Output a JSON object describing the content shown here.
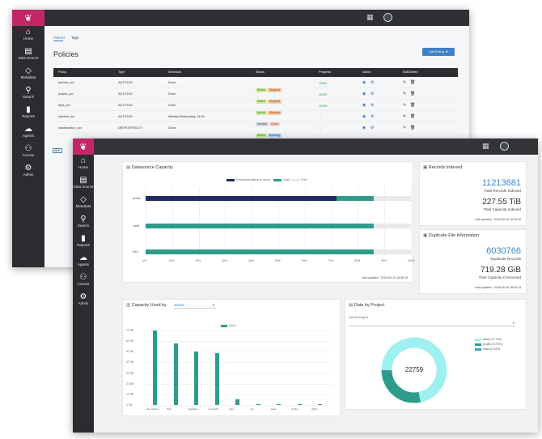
{
  "colors": {
    "brand": "#c42768",
    "topbar": "#2f3033",
    "sidebar": "#2b2c2f",
    "accent": "#2e9c8b",
    "navy": "#1f2d5c",
    "link": "#3a87c8"
  },
  "nav": [
    {
      "icon": "⌂",
      "label": "Home"
    },
    {
      "icon": "▤",
      "label": "Data Source"
    },
    {
      "icon": "◇",
      "label": "Metadata"
    },
    {
      "icon": "⚲",
      "label": "Search"
    },
    {
      "icon": "▮",
      "label": "Reports"
    },
    {
      "icon": "☁",
      "label": "Agents"
    },
    {
      "icon": "⚇",
      "label": "Access"
    },
    {
      "icon": "⚙",
      "label": "Admin"
    }
  ],
  "policies": {
    "tabs": [
      "Policies",
      "Tags"
    ],
    "title": "Policies",
    "add_button": "Add Policy",
    "columns": [
      "Policy",
      "Type",
      "Schedule",
      "Status",
      "Progress",
      "Action",
      "Edit/Delete"
    ],
    "rows": [
      {
        "policy": "archive_pol",
        "type": "AUTOTAG",
        "schedule": "Done",
        "status": [
          "Active",
          "Stopped"
        ],
        "progress": "100%"
      },
      {
        "policy": "project_pol",
        "type": "AUTOTAG",
        "schedule": "Done",
        "status": [
          "Active",
          "Stopped"
        ],
        "progress": "100%"
      },
      {
        "policy": "dept_pol",
        "type": "AUTOTAG",
        "schedule": "Done",
        "status": [
          "Active",
          "Stopped"
        ],
        "progress": "100%"
      },
      {
        "policy": "inactive_pol",
        "type": "AUTOTAG",
        "schedule": "Weekly:Wednesday, 14:04",
        "status": [
          "Inactive",
          "Done"
        ],
        "progress": "⚠"
      },
      {
        "policy": "classification_pol",
        "type": "DEEPDISPOLICY",
        "schedule": "Done",
        "status": [
          "Active",
          "Running"
        ],
        "progress": "⚠"
      }
    ],
    "pager": "All"
  },
  "capacity": {
    "title": "Datasource Capacity",
    "legend": [
      "Recommendation to move",
      "Used",
      "Free"
    ],
    "bars": [
      {
        "label": "prodA",
        "rec": 72,
        "used": 14,
        "free": 14
      },
      {
        "label": "nasB",
        "rec": 0,
        "used": 86,
        "free": 14
      },
      {
        "label": "fileC",
        "rec": 0,
        "used": 86,
        "free": 14
      }
    ],
    "ticks": [
      "0%",
      "10%",
      "20%",
      "30%",
      "40%",
      "50%",
      "60%",
      "70%",
      "80%",
      "90%",
      "100%"
    ],
    "updated": "Last updated : 2018-09-19 18:30:15"
  },
  "records": {
    "title": "Records Indexed",
    "value": "11213681",
    "value_label": "Total Records Indexed",
    "capacity": "227.55 TiB",
    "capacity_label": "Total Capacity Indexed",
    "updated": "Last updated : 2018-09-19 18:30:15"
  },
  "duplicates": {
    "title": "Duplicate File Information",
    "value": "6030766",
    "value_label": "Duplicate Records",
    "capacity": "719.28 GiB",
    "capacity_label": "Total Capacity Consumed",
    "updated": "Last updated : 2018-09-19 18:30:14"
  },
  "used_by": {
    "title": "Capacity Used by",
    "selector": "Owner",
    "legend": "Used",
    "chart_data": {
      "type": "bar",
      "categories": [
        "dmeta/Dom",
        "Bob",
        "chad/ase",
        "dmeta/Hi",
        "tjohn",
        "ops",
        "itcafe",
        "sm/list",
        "jfillinx"
      ],
      "values": [
        70,
        58,
        50,
        49,
        5,
        0.5,
        0.3,
        0.2,
        0.2
      ],
      "ylim": [
        0,
        75
      ],
      "yticks": [
        "70 TiB",
        "60 TiB",
        "50 TiB",
        "40 TiB",
        "30 TiB",
        "20 TiB",
        "10 TiB",
        "0 TiB"
      ]
    }
  },
  "project": {
    "title": "Data by Project",
    "select_label": "Selects Project",
    "center": "22759",
    "legend": [
      "data1 (71.74%)",
      "proj66 (27.93%)",
      "data2 (0.34%)"
    ],
    "chart_data": {
      "type": "pie",
      "categories": [
        "data1",
        "proj66",
        "data2"
      ],
      "values": [
        71.74,
        27.93,
        0.34
      ]
    }
  }
}
